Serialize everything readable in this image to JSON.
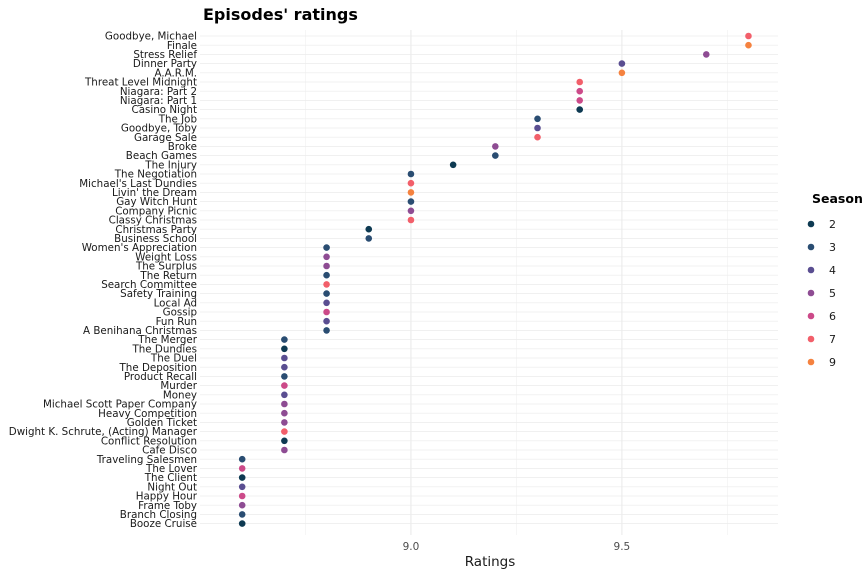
{
  "chart_data": {
    "type": "scatter",
    "title": "Episodes' ratings",
    "xlabel": "Ratings",
    "ylabel": "",
    "xlim": [
      8.5,
      9.87
    ],
    "xticks": [
      "9.0",
      "9.5"
    ],
    "grid": true,
    "legend": {
      "title": "Season",
      "placement": "right"
    },
    "season_colors": {
      "2": "#0e3a52",
      "3": "#2a4d72",
      "4": "#5a4e91",
      "5": "#8e4c93",
      "6": "#cc4a89",
      "7": "#f25f6a",
      "9": "#f5823f"
    },
    "legend_items": [
      {
        "label": "2"
      },
      {
        "label": "3"
      },
      {
        "label": "4"
      },
      {
        "label": "5"
      },
      {
        "label": "6"
      },
      {
        "label": "7"
      },
      {
        "label": "9"
      }
    ],
    "points": [
      {
        "episode": "Goodbye, Michael",
        "rating": 9.8,
        "season": "7"
      },
      {
        "episode": "Finale",
        "rating": 9.8,
        "season": "9"
      },
      {
        "episode": "Stress Relief",
        "rating": 9.7,
        "season": "5"
      },
      {
        "episode": "Dinner Party",
        "rating": 9.5,
        "season": "4"
      },
      {
        "episode": "A.A.R.M.",
        "rating": 9.5,
        "season": "9"
      },
      {
        "episode": "Threat Level Midnight",
        "rating": 9.4,
        "season": "7"
      },
      {
        "episode": "Niagara: Part 2",
        "rating": 9.4,
        "season": "6"
      },
      {
        "episode": "Niagara: Part 1",
        "rating": 9.4,
        "season": "6"
      },
      {
        "episode": "Casino Night",
        "rating": 9.4,
        "season": "2"
      },
      {
        "episode": "The Job",
        "rating": 9.3,
        "season": "3"
      },
      {
        "episode": "Goodbye, Toby",
        "rating": 9.3,
        "season": "4"
      },
      {
        "episode": "Garage Sale",
        "rating": 9.3,
        "season": "7"
      },
      {
        "episode": "Broke",
        "rating": 9.2,
        "season": "5"
      },
      {
        "episode": "Beach Games",
        "rating": 9.2,
        "season": "3"
      },
      {
        "episode": "The Injury",
        "rating": 9.1,
        "season": "2"
      },
      {
        "episode": "The Negotiation",
        "rating": 9.0,
        "season": "3"
      },
      {
        "episode": "Michael's Last Dundies",
        "rating": 9.0,
        "season": "7"
      },
      {
        "episode": "Livin' the Dream",
        "rating": 9.0,
        "season": "9"
      },
      {
        "episode": "Gay Witch Hunt",
        "rating": 9.0,
        "season": "3"
      },
      {
        "episode": "Company Picnic",
        "rating": 9.0,
        "season": "5"
      },
      {
        "episode": "Classy Christmas",
        "rating": 9.0,
        "season": "7"
      },
      {
        "episode": "Christmas Party",
        "rating": 8.9,
        "season": "2"
      },
      {
        "episode": "Business School",
        "rating": 8.9,
        "season": "3"
      },
      {
        "episode": "Women's Appreciation",
        "rating": 8.8,
        "season": "3"
      },
      {
        "episode": "Weight Loss",
        "rating": 8.8,
        "season": "5"
      },
      {
        "episode": "The Surplus",
        "rating": 8.8,
        "season": "5"
      },
      {
        "episode": "The Return",
        "rating": 8.8,
        "season": "3"
      },
      {
        "episode": "Search Committee",
        "rating": 8.8,
        "season": "7"
      },
      {
        "episode": "Safety Training",
        "rating": 8.8,
        "season": "3"
      },
      {
        "episode": "Local Ad",
        "rating": 8.8,
        "season": "4"
      },
      {
        "episode": "Gossip",
        "rating": 8.8,
        "season": "6"
      },
      {
        "episode": "Fun Run",
        "rating": 8.8,
        "season": "4"
      },
      {
        "episode": "A Benihana Christmas",
        "rating": 8.8,
        "season": "3"
      },
      {
        "episode": "The Merger",
        "rating": 8.7,
        "season": "3"
      },
      {
        "episode": "The Dundies",
        "rating": 8.7,
        "season": "2"
      },
      {
        "episode": "The Duel",
        "rating": 8.7,
        "season": "4"
      },
      {
        "episode": "The Deposition",
        "rating": 8.7,
        "season": "4"
      },
      {
        "episode": "Product Recall",
        "rating": 8.7,
        "season": "3"
      },
      {
        "episode": "Murder",
        "rating": 8.7,
        "season": "6"
      },
      {
        "episode": "Money",
        "rating": 8.7,
        "season": "4"
      },
      {
        "episode": "Michael Scott Paper Company",
        "rating": 8.7,
        "season": "5"
      },
      {
        "episode": "Heavy Competition",
        "rating": 8.7,
        "season": "5"
      },
      {
        "episode": "Golden Ticket",
        "rating": 8.7,
        "season": "5"
      },
      {
        "episode": "Dwight K. Schrute, (Acting) Manager",
        "rating": 8.7,
        "season": "7"
      },
      {
        "episode": "Conflict Resolution",
        "rating": 8.7,
        "season": "2"
      },
      {
        "episode": "Cafe Disco",
        "rating": 8.7,
        "season": "5"
      },
      {
        "episode": "Traveling Salesmen",
        "rating": 8.6,
        "season": "3"
      },
      {
        "episode": "The Lover",
        "rating": 8.6,
        "season": "6"
      },
      {
        "episode": "The Client",
        "rating": 8.6,
        "season": "2"
      },
      {
        "episode": "Night Out",
        "rating": 8.6,
        "season": "4"
      },
      {
        "episode": "Happy Hour",
        "rating": 8.6,
        "season": "6"
      },
      {
        "episode": "Frame Toby",
        "rating": 8.6,
        "season": "5"
      },
      {
        "episode": "Branch Closing",
        "rating": 8.6,
        "season": "3"
      },
      {
        "episode": "Booze Cruise",
        "rating": 8.6,
        "season": "2"
      }
    ]
  }
}
